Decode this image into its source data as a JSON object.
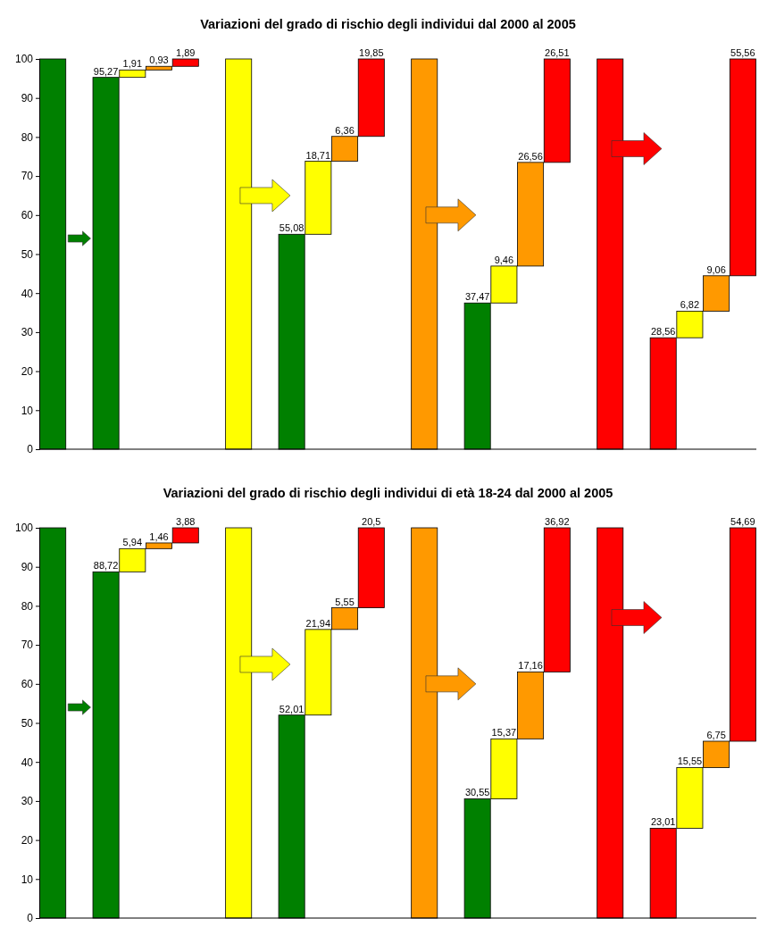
{
  "chart_data": [
    {
      "type": "bar",
      "title": "Variazioni del grado di rischio degli individui dal 2000 al 2005",
      "categories": [
        null,
        null,
        null,
        null,
        null,
        null,
        null,
        null,
        null,
        null,
        null,
        null,
        null,
        null,
        null,
        null,
        null,
        null,
        null,
        null,
        null,
        null,
        null,
        null,
        null,
        null,
        null
      ],
      "values": [
        100,
        null,
        95.27,
        1.91,
        0.93,
        1.89,
        null,
        100,
        null,
        55.08,
        18.71,
        6.36,
        19.85,
        null,
        100,
        null,
        37.47,
        9.46,
        26.56,
        26.51,
        null,
        100,
        null,
        28.56,
        6.82,
        9.06,
        55.56
      ],
      "base": [
        0,
        null,
        0,
        95.27,
        97.18,
        98.11,
        null,
        0,
        null,
        0,
        55.08,
        73.79,
        80.15,
        null,
        0,
        null,
        0,
        37.47,
        46.93,
        73.49,
        null,
        0,
        null,
        0,
        28.56,
        35.38,
        44.44
      ],
      "colors": [
        "#008000",
        null,
        "#008000",
        "#ffff00",
        "#ff9900",
        "#ff0000",
        null,
        "#ffff00",
        null,
        "#008000",
        "#ffff00",
        "#ff9900",
        "#ff0000",
        null,
        "#ff9900",
        null,
        "#008000",
        "#ffff00",
        "#ff9900",
        "#ff0000",
        null,
        "#ff0000",
        null,
        "#ff0000",
        "#ffff00",
        "#ff9900",
        "#ff0000"
      ],
      "value_labels": [
        null,
        null,
        "95,27",
        "1,91",
        "0,93",
        "1,89",
        null,
        null,
        null,
        "55,08",
        "18,71",
        "6,36",
        "19,85",
        null,
        null,
        null,
        "37,47",
        "9,46",
        "26,56",
        "26,51",
        null,
        null,
        null,
        "28,56",
        "6,82",
        "9,06",
        "55,56"
      ],
      "ylim": [
        0,
        100
      ],
      "yticks": [
        0,
        10,
        20,
        30,
        40,
        50,
        60,
        70,
        80,
        90,
        100
      ],
      "grid": false
    },
    {
      "type": "bar",
      "title": "Variazioni del grado di rischio degli individui di età 18-24 dal 2000 al 2005",
      "categories": [
        null,
        null,
        null,
        null,
        null,
        null,
        null,
        null,
        null,
        null,
        null,
        null,
        null,
        null,
        null,
        null,
        null,
        null,
        null,
        null,
        null,
        null,
        null,
        null,
        null,
        null,
        null
      ],
      "values": [
        100,
        null,
        88.72,
        5.94,
        1.46,
        3.88,
        null,
        100,
        null,
        52.01,
        21.94,
        5.55,
        20.5,
        null,
        100,
        null,
        30.55,
        15.37,
        17.16,
        36.92,
        null,
        100,
        null,
        23.01,
        15.55,
        6.75,
        54.69
      ],
      "base": [
        0,
        null,
        0,
        88.72,
        94.66,
        96.12,
        null,
        0,
        null,
        0,
        52.01,
        73.95,
        79.5,
        null,
        0,
        null,
        0,
        30.55,
        45.92,
        63.08,
        null,
        0,
        null,
        0,
        23.01,
        38.56,
        45.31
      ],
      "colors": [
        "#008000",
        null,
        "#008000",
        "#ffff00",
        "#ff9900",
        "#ff0000",
        null,
        "#ffff00",
        null,
        "#008000",
        "#ffff00",
        "#ff9900",
        "#ff0000",
        null,
        "#ff9900",
        null,
        "#008000",
        "#ffff00",
        "#ff9900",
        "#ff0000",
        null,
        "#ff0000",
        null,
        "#ff0000",
        "#ffff00",
        "#ff9900",
        "#ff0000"
      ],
      "value_labels": [
        null,
        null,
        "88,72",
        "5,94",
        "1,46",
        "3,88",
        null,
        null,
        null,
        "52,01",
        "21,94",
        "5,55",
        "20,5",
        null,
        null,
        null,
        "30,55",
        "15,37",
        "17,16",
        "36,92",
        null,
        null,
        null,
        "23,01",
        "15,55",
        "6,75",
        "54,69"
      ],
      "ylim": [
        0,
        100
      ],
      "yticks": [
        0,
        10,
        20,
        30,
        40,
        50,
        60,
        70,
        80,
        90,
        100
      ],
      "grid": false
    }
  ]
}
